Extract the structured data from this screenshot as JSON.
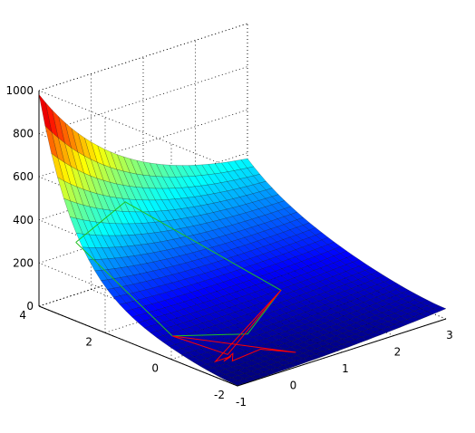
{
  "chart_data": {
    "type": "surface3d",
    "title": "",
    "xlabel": "",
    "ylabel": "",
    "zlabel": "",
    "xlim": [
      -1,
      3
    ],
    "ylim": [
      -2,
      4
    ],
    "zlim": [
      0,
      1000
    ],
    "x_ticks": [
      "-1",
      "0",
      "1",
      "2",
      "3"
    ],
    "y_ticks": [
      "-2",
      "0",
      "2",
      "4"
    ],
    "z_ticks": [
      "0",
      "200",
      "400",
      "600",
      "800",
      "1000"
    ],
    "grid": true,
    "colormap": "jet",
    "surface_peak": {
      "x": -1,
      "y": 4,
      "z": 1000
    },
    "surface_corners": [
      {
        "x": -1,
        "y": -2,
        "z": 5
      },
      {
        "x": 3,
        "y": -2,
        "z": 50
      },
      {
        "x": 3,
        "y": 4,
        "z": 700
      },
      {
        "x": -1,
        "y": 4,
        "z": 1000
      }
    ],
    "overlay_paths": [
      {
        "color": "#20c020",
        "points": [
          {
            "x": -0.8,
            "y": 3.2,
            "z": 330
          },
          {
            "x": 0.4,
            "y": 3.6,
            "z": 400
          },
          {
            "x": 1.8,
            "y": 1.1,
            "z": 35
          },
          {
            "x": 0.4,
            "y": -0.1,
            "z": 15
          },
          {
            "x": -0.6,
            "y": 0.6,
            "z": 40
          },
          {
            "x": -0.8,
            "y": 3.2,
            "z": 330
          }
        ]
      },
      {
        "color": "#ff0000",
        "points": [
          {
            "x": 1.8,
            "y": 1.1,
            "z": 35
          },
          {
            "x": -0.3,
            "y": -0.6,
            "z": 5
          },
          {
            "x": -0.6,
            "y": 0.6,
            "z": 40
          },
          {
            "x": 0.5,
            "y": -1.4,
            "z": 2
          },
          {
            "x": 0.2,
            "y": -0.8,
            "z": 3
          },
          {
            "x": -0.4,
            "y": -0.9,
            "z": 2
          },
          {
            "x": -0.2,
            "y": -0.6,
            "z": 2
          },
          {
            "x": -0.5,
            "y": -0.8,
            "z": 2
          },
          {
            "x": -0.3,
            "y": -0.7,
            "z": 2
          },
          {
            "x": -0.6,
            "y": -0.7,
            "z": 2
          },
          {
            "x": 1.8,
            "y": 1.1,
            "z": 35
          }
        ]
      }
    ]
  }
}
